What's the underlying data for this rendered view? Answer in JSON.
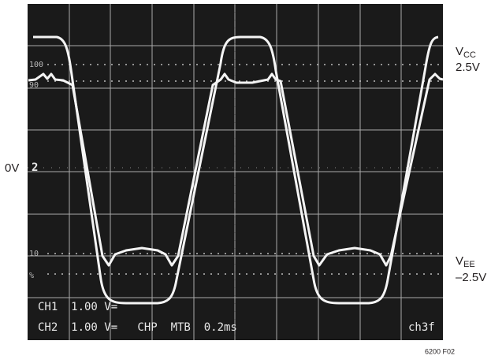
{
  "labels": {
    "vcc": {
      "symbol": "V",
      "subscript": "CC",
      "level": "2.5V"
    },
    "zero": "0V",
    "vee": {
      "symbol": "V",
      "subscript": "EE",
      "level": "–2.5V"
    }
  },
  "screen": {
    "marks": {
      "top": "100",
      "upper": "90",
      "lower": "10",
      "bottom": "%",
      "ground": "2"
    },
    "readout": {
      "line1": "CH1  1.00 V=",
      "line2": "CH2  1.00 V=   CHP  MTB  0.2ms",
      "tag": "ch3f"
    }
  },
  "figure_id": "6200 F02"
}
